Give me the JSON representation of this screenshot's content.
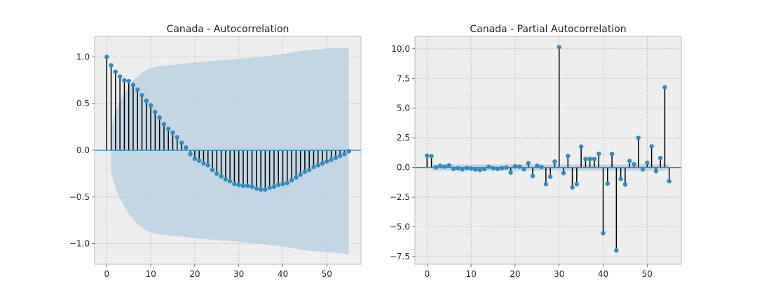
{
  "chart_data": [
    {
      "type": "stem",
      "title": "Canada - Autocorrelation",
      "xlabel": "",
      "ylabel": "",
      "xlim": [
        -2.75,
        57.75
      ],
      "ylim": [
        -1.22,
        1.22
      ],
      "xticks": [
        0,
        10,
        20,
        30,
        40,
        50
      ],
      "yticks": [
        -1.0,
        -0.5,
        0.0,
        0.5,
        1.0
      ],
      "ytick_labels": [
        "−1.0",
        "−0.5",
        "0.0",
        "0.5",
        "1.0"
      ],
      "grid": true,
      "marker_color": "#348abd",
      "stem_color": "#000000",
      "band_color": "#bcd3e1",
      "series": [
        {
          "x": [
            0,
            1,
            2,
            3,
            4,
            5,
            6,
            7,
            8,
            9,
            10,
            11,
            12,
            13,
            14,
            15,
            16,
            17,
            18,
            19,
            20,
            21,
            22,
            23,
            24,
            25,
            26,
            27,
            28,
            29,
            30,
            31,
            32,
            33,
            34,
            35,
            36,
            37,
            38,
            39,
            40,
            41,
            42,
            43,
            44,
            45,
            46,
            47,
            48,
            49,
            50,
            51,
            52,
            53,
            54,
            55
          ],
          "values": [
            1.0,
            0.91,
            0.84,
            0.79,
            0.75,
            0.74,
            0.7,
            0.65,
            0.59,
            0.53,
            0.48,
            0.41,
            0.35,
            0.28,
            0.23,
            0.19,
            0.14,
            0.08,
            0.03,
            -0.04,
            -0.09,
            -0.11,
            -0.14,
            -0.16,
            -0.21,
            -0.25,
            -0.28,
            -0.31,
            -0.33,
            -0.36,
            -0.37,
            -0.38,
            -0.38,
            -0.39,
            -0.41,
            -0.42,
            -0.42,
            -0.4,
            -0.39,
            -0.37,
            -0.36,
            -0.35,
            -0.32,
            -0.29,
            -0.26,
            -0.23,
            -0.21,
            -0.18,
            -0.16,
            -0.14,
            -0.12,
            -0.1,
            -0.08,
            -0.06,
            -0.04,
            -0.01
          ]
        }
      ],
      "confidence_band": {
        "x": [
          1,
          2,
          3,
          4,
          5,
          6,
          7,
          8,
          9,
          10,
          12,
          14,
          16,
          18,
          20,
          22,
          25,
          30,
          35,
          40,
          45,
          50,
          55
        ],
        "upper": [
          0.24,
          0.4,
          0.52,
          0.6,
          0.68,
          0.74,
          0.79,
          0.83,
          0.86,
          0.88,
          0.9,
          0.91,
          0.92,
          0.93,
          0.94,
          0.95,
          0.96,
          0.98,
          1.0,
          1.03,
          1.07,
          1.09,
          1.1
        ],
        "lower": [
          -0.24,
          -0.4,
          -0.52,
          -0.6,
          -0.68,
          -0.74,
          -0.79,
          -0.83,
          -0.86,
          -0.88,
          -0.9,
          -0.91,
          -0.92,
          -0.93,
          -0.94,
          -0.95,
          -0.96,
          -0.98,
          -1.0,
          -1.03,
          -1.07,
          -1.09,
          -1.11
        ]
      }
    },
    {
      "type": "stem",
      "title": "Canada - Partial Autocorrelation",
      "xlabel": "",
      "ylabel": "",
      "xlim": [
        -2.75,
        57.75
      ],
      "ylim": [
        -8.15,
        11.05
      ],
      "xticks": [
        0,
        10,
        20,
        30,
        40,
        50
      ],
      "yticks": [
        -7.5,
        -5.0,
        -2.5,
        0.0,
        2.5,
        5.0,
        7.5,
        10.0
      ],
      "ytick_labels": [
        "−7.5",
        "−5.0",
        "−2.5",
        "0.0",
        "2.5",
        "5.0",
        "7.5",
        "10.0"
      ],
      "grid": true,
      "marker_color": "#348abd",
      "stem_color": "#000000",
      "band_color": "#bcd3e1",
      "series": [
        {
          "x": [
            0,
            1,
            2,
            3,
            4,
            5,
            6,
            7,
            8,
            9,
            10,
            11,
            12,
            13,
            14,
            15,
            16,
            17,
            18,
            19,
            20,
            21,
            22,
            23,
            24,
            25,
            26,
            27,
            28,
            29,
            30,
            31,
            32,
            33,
            34,
            35,
            36,
            37,
            38,
            39,
            40,
            41,
            42,
            43,
            44,
            45,
            46,
            47,
            48,
            49,
            50,
            51,
            52,
            53,
            54,
            55
          ],
          "values": [
            1.0,
            0.95,
            0.02,
            0.15,
            0.07,
            0.18,
            -0.12,
            -0.05,
            -0.16,
            -0.04,
            -0.08,
            -0.17,
            -0.2,
            -0.13,
            0.06,
            -0.06,
            -0.12,
            -0.05,
            0.0,
            -0.42,
            0.1,
            0.07,
            -0.15,
            0.36,
            -0.72,
            0.15,
            0.03,
            -1.4,
            -0.77,
            0.5,
            10.15,
            -0.47,
            0.97,
            -1.68,
            -1.4,
            1.76,
            0.72,
            0.72,
            0.72,
            1.16,
            -5.53,
            -1.36,
            1.15,
            -6.98,
            -0.96,
            -1.42,
            0.55,
            0.27,
            2.5,
            -0.16,
            0.4,
            1.78,
            -0.3,
            0.8,
            6.75,
            -1.15
          ]
        }
      ],
      "confidence_band": {
        "x": [
          1,
          55
        ],
        "upper": [
          0.26,
          0.26
        ],
        "lower": [
          -0.26,
          -0.26
        ]
      }
    }
  ]
}
